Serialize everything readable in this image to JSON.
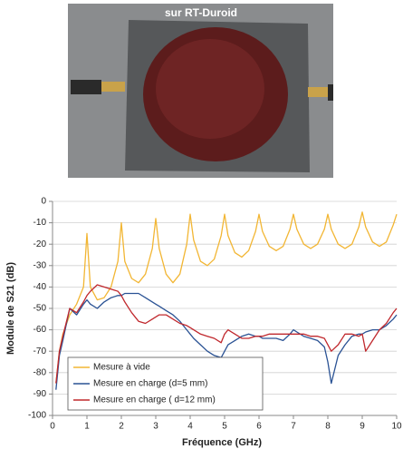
{
  "photo": {
    "caption": "sur RT-Duroid"
  },
  "chart_data": {
    "type": "line",
    "xlabel": "Fréquence (GHz)",
    "ylabel": "Module de S21 (dB)",
    "xlim": [
      0,
      10
    ],
    "xticks": [
      0,
      1,
      2,
      3,
      4,
      5,
      6,
      7,
      8,
      9,
      10
    ],
    "ylim": [
      -100,
      0
    ],
    "yticks": [
      0,
      -10,
      -20,
      -30,
      -40,
      -50,
      -60,
      -70,
      -80,
      -90,
      -100
    ],
    "grid": true,
    "legend": "lower left",
    "x": [
      0.1,
      0.2,
      0.3,
      0.5,
      0.7,
      0.9,
      1.0,
      1.1,
      1.3,
      1.5,
      1.7,
      1.9,
      2.0,
      2.1,
      2.3,
      2.5,
      2.7,
      2.9,
      3.0,
      3.1,
      3.3,
      3.5,
      3.7,
      3.9,
      4.0,
      4.1,
      4.3,
      4.5,
      4.7,
      4.9,
      5.0,
      5.1,
      5.3,
      5.5,
      5.7,
      5.9,
      6.0,
      6.1,
      6.3,
      6.5,
      6.7,
      6.9,
      7.0,
      7.1,
      7.3,
      7.5,
      7.7,
      7.9,
      8.0,
      8.1,
      8.3,
      8.5,
      8.7,
      8.9,
      9.0,
      9.1,
      9.3,
      9.5,
      9.7,
      9.9,
      10.0
    ],
    "series": [
      {
        "name": "Mesure à vide",
        "color": "#f2b634",
        "values": [
          -85,
          -70,
          -62,
          -53,
          -48,
          -40,
          -15,
          -40,
          -46,
          -45,
          -40,
          -28,
          -10,
          -28,
          -36,
          -38,
          -34,
          -22,
          -8,
          -22,
          -34,
          -38,
          -34,
          -20,
          -6,
          -18,
          -28,
          -30,
          -27,
          -16,
          -6,
          -16,
          -24,
          -26,
          -23,
          -14,
          -6,
          -14,
          -21,
          -23,
          -21,
          -13,
          -6,
          -13,
          -20,
          -22,
          -20,
          -13,
          -6,
          -13,
          -20,
          -22,
          -20,
          -12,
          -5,
          -12,
          -19,
          -21,
          -19,
          -11,
          -6
        ]
      },
      {
        "name": "Mesure en charge (d=5 mm)",
        "color": "#2a5294",
        "values": [
          -88,
          -72,
          -65,
          -50,
          -53,
          -48,
          -46,
          -48,
          -50,
          -47,
          -45,
          -44,
          -44,
          -43,
          -43,
          -43,
          -45,
          -47,
          -48,
          -49,
          -51,
          -53,
          -56,
          -60,
          -62,
          -64,
          -67,
          -70,
          -72,
          -73,
          -70,
          -67,
          -65,
          -63,
          -62,
          -63,
          -63,
          -64,
          -64,
          -64,
          -65,
          -62,
          -60,
          -61,
          -63,
          -64,
          -65,
          -68,
          -75,
          -85,
          -72,
          -67,
          -63,
          -62,
          -62,
          -61,
          -60,
          -60,
          -58,
          -55,
          -53
        ]
      },
      {
        "name": "Mesure en charge ( d=12 mm)",
        "color": "#c0282d",
        "values": [
          -85,
          -70,
          -63,
          -50,
          -52,
          -47,
          -44,
          -42,
          -39,
          -40,
          -41,
          -42,
          -44,
          -47,
          -52,
          -56,
          -57,
          -55,
          -54,
          -53,
          -53,
          -55,
          -57,
          -58,
          -59,
          -60,
          -62,
          -63,
          -64,
          -66,
          -62,
          -60,
          -62,
          -64,
          -64,
          -63,
          -63,
          -63,
          -62,
          -62,
          -62,
          -62,
          -62,
          -62,
          -62,
          -63,
          -63,
          -64,
          -67,
          -70,
          -67,
          -62,
          -62,
          -63,
          -62,
          -70,
          -65,
          -60,
          -57,
          -52,
          -50
        ]
      }
    ]
  }
}
